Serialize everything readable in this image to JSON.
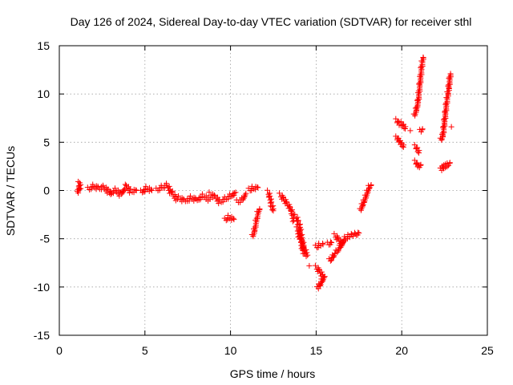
{
  "chart_data": {
    "type": "scatter",
    "title": "Day 126 of 2024, Sidereal Day-to-day VTEC variation (SDTVAR) for receiver sthl",
    "xlabel": "GPS time / hours",
    "ylabel": "SDTVAR / TECUs",
    "xlim": [
      0,
      25
    ],
    "ylim": [
      -15,
      15
    ],
    "xticks": [
      0,
      5,
      10,
      15,
      20,
      25
    ],
    "yticks": [
      -15,
      -10,
      -5,
      0,
      5,
      10,
      15
    ],
    "grid": true,
    "marker": "+",
    "series_color": "#ff0000",
    "segments": [
      [
        [
          1.1,
          -0.3
        ],
        [
          1.15,
          0.7
        ],
        [
          1.25,
          0.2
        ]
      ],
      [
        [
          1.7,
          0.1
        ],
        [
          2.0,
          0.4
        ],
        [
          2.3,
          0.2
        ],
        [
          2.6,
          0.3
        ],
        [
          2.9,
          -0.1
        ],
        [
          3.0,
          -0.4
        ]
      ],
      [
        [
          3.0,
          -0.3
        ],
        [
          3.3,
          0.0
        ],
        [
          3.6,
          -0.4
        ],
        [
          3.9,
          0.4
        ],
        [
          4.2,
          -0.1
        ],
        [
          4.5,
          0.0
        ]
      ],
      [
        [
          4.8,
          -0.2
        ],
        [
          5.1,
          0.2
        ],
        [
          5.4,
          0.0
        ]
      ],
      [
        [
          5.7,
          0.0
        ],
        [
          6.0,
          0.3
        ],
        [
          6.3,
          0.5
        ],
        [
          6.6,
          -0.4
        ],
        [
          6.9,
          -0.9
        ]
      ],
      [
        [
          7.0,
          -0.8
        ],
        [
          7.3,
          -1.1
        ],
        [
          7.7,
          -0.8
        ],
        [
          8.0,
          -1.0
        ],
        [
          8.4,
          -0.6
        ],
        [
          8.8,
          -0.9
        ]
      ],
      [
        [
          8.8,
          -0.4
        ],
        [
          9.1,
          -0.7
        ],
        [
          9.4,
          -1.2
        ],
        [
          9.7,
          -0.9
        ],
        [
          10.0,
          -0.6
        ],
        [
          10.3,
          -0.2
        ]
      ],
      [
        [
          9.7,
          -3.1
        ],
        [
          9.9,
          -2.8
        ],
        [
          10.2,
          -3.0
        ]
      ],
      [
        [
          10.4,
          -1.2
        ],
        [
          10.7,
          -1.0
        ],
        [
          10.9,
          -0.3
        ]
      ],
      [
        [
          11.1,
          0.0
        ],
        [
          11.3,
          0.2
        ],
        [
          11.6,
          0.3
        ]
      ],
      [
        [
          11.3,
          -4.8
        ],
        [
          11.4,
          -4.2
        ],
        [
          11.5,
          -3.3
        ],
        [
          11.6,
          -2.4
        ],
        [
          11.7,
          -1.9
        ]
      ],
      [
        [
          12.2,
          -0.2
        ],
        [
          12.3,
          -0.8
        ],
        [
          12.4,
          -1.5
        ],
        [
          12.5,
          -2.1
        ]
      ],
      [
        [
          12.9,
          -0.5
        ],
        [
          13.1,
          -0.9
        ],
        [
          13.3,
          -1.4
        ],
        [
          13.5,
          -1.9
        ],
        [
          13.6,
          -2.4
        ],
        [
          13.7,
          -3.1
        ]
      ],
      [
        [
          13.8,
          -2.7
        ],
        [
          14.0,
          -3.4
        ],
        [
          14.1,
          -4.5
        ],
        [
          14.2,
          -5.3
        ],
        [
          14.3,
          -6.1
        ],
        [
          14.5,
          -6.7
        ]
      ],
      [
        [
          13.9,
          -4.0
        ],
        [
          14.1,
          -5.2
        ],
        [
          14.3,
          -6.5
        ]
      ],
      [
        [
          14.6,
          -7.8
        ]
      ],
      [
        [
          15.0,
          -5.9
        ],
        [
          15.2,
          -5.7
        ],
        [
          15.4,
          -5.6
        ]
      ],
      [
        [
          15.0,
          -8.0
        ],
        [
          15.2,
          -8.4
        ],
        [
          15.4,
          -8.9
        ]
      ],
      [
        [
          15.1,
          -10.2
        ],
        [
          15.2,
          -9.9
        ],
        [
          15.35,
          -9.4
        ],
        [
          15.5,
          -8.9
        ]
      ],
      [
        [
          15.7,
          -5.6
        ],
        [
          15.9,
          -5.4
        ]
      ],
      [
        [
          15.8,
          -7.3
        ],
        [
          16.0,
          -6.9
        ],
        [
          16.1,
          -6.5
        ]
      ],
      [
        [
          16.1,
          -4.7
        ],
        [
          16.3,
          -5.1
        ],
        [
          16.5,
          -5.5
        ],
        [
          16.7,
          -5.0
        ],
        [
          16.9,
          -4.8
        ],
        [
          17.1,
          -4.7
        ],
        [
          17.3,
          -4.6
        ],
        [
          17.5,
          -4.4
        ]
      ],
      [
        [
          16.2,
          -6.4
        ],
        [
          16.4,
          -5.9
        ],
        [
          16.6,
          -5.3
        ]
      ],
      [
        [
          17.6,
          -2.1
        ],
        [
          17.7,
          -1.6
        ],
        [
          17.8,
          -1.2
        ],
        [
          17.9,
          -0.7
        ],
        [
          18.0,
          -0.2
        ],
        [
          18.1,
          0.3
        ],
        [
          18.2,
          0.5
        ]
      ],
      [
        [
          19.7,
          7.2
        ],
        [
          19.8,
          6.9
        ],
        [
          19.9,
          6.8
        ],
        [
          20.0,
          6.9
        ],
        [
          20.1,
          6.6
        ],
        [
          20.2,
          6.4
        ]
      ],
      [
        [
          19.7,
          5.4
        ],
        [
          19.8,
          5.2
        ],
        [
          19.9,
          4.9
        ],
        [
          20.0,
          4.7
        ],
        [
          20.1,
          4.5
        ]
      ],
      [
        [
          20.5,
          6.2
        ]
      ],
      [
        [
          20.75,
          7.7
        ],
        [
          20.85,
          8.3
        ],
        [
          20.95,
          9.1
        ],
        [
          21.0,
          9.9
        ],
        [
          21.05,
          10.8
        ],
        [
          21.1,
          11.6
        ],
        [
          21.15,
          12.5
        ],
        [
          21.2,
          13.2
        ],
        [
          21.25,
          13.8
        ]
      ],
      [
        [
          20.8,
          4.5
        ],
        [
          20.9,
          4.2
        ],
        [
          21.0,
          3.9
        ]
      ],
      [
        [
          20.8,
          2.9
        ],
        [
          20.9,
          2.6
        ],
        [
          21.0,
          2.4
        ],
        [
          21.1,
          2.6
        ]
      ],
      [
        [
          21.1,
          6.1
        ],
        [
          21.2,
          6.3
        ]
      ],
      [
        [
          22.3,
          5.2
        ],
        [
          22.4,
          5.6
        ],
        [
          22.45,
          6.3
        ],
        [
          22.5,
          7.1
        ],
        [
          22.55,
          7.9
        ],
        [
          22.6,
          8.7
        ],
        [
          22.65,
          9.4
        ],
        [
          22.7,
          10.0
        ],
        [
          22.75,
          10.6
        ],
        [
          22.8,
          11.4
        ],
        [
          22.85,
          12.1
        ]
      ],
      [
        [
          22.3,
          2.1
        ],
        [
          22.4,
          2.3
        ],
        [
          22.5,
          2.4
        ],
        [
          22.6,
          2.5
        ],
        [
          22.7,
          2.6
        ],
        [
          22.8,
          2.8
        ]
      ],
      [
        [
          22.9,
          6.6
        ]
      ]
    ]
  }
}
